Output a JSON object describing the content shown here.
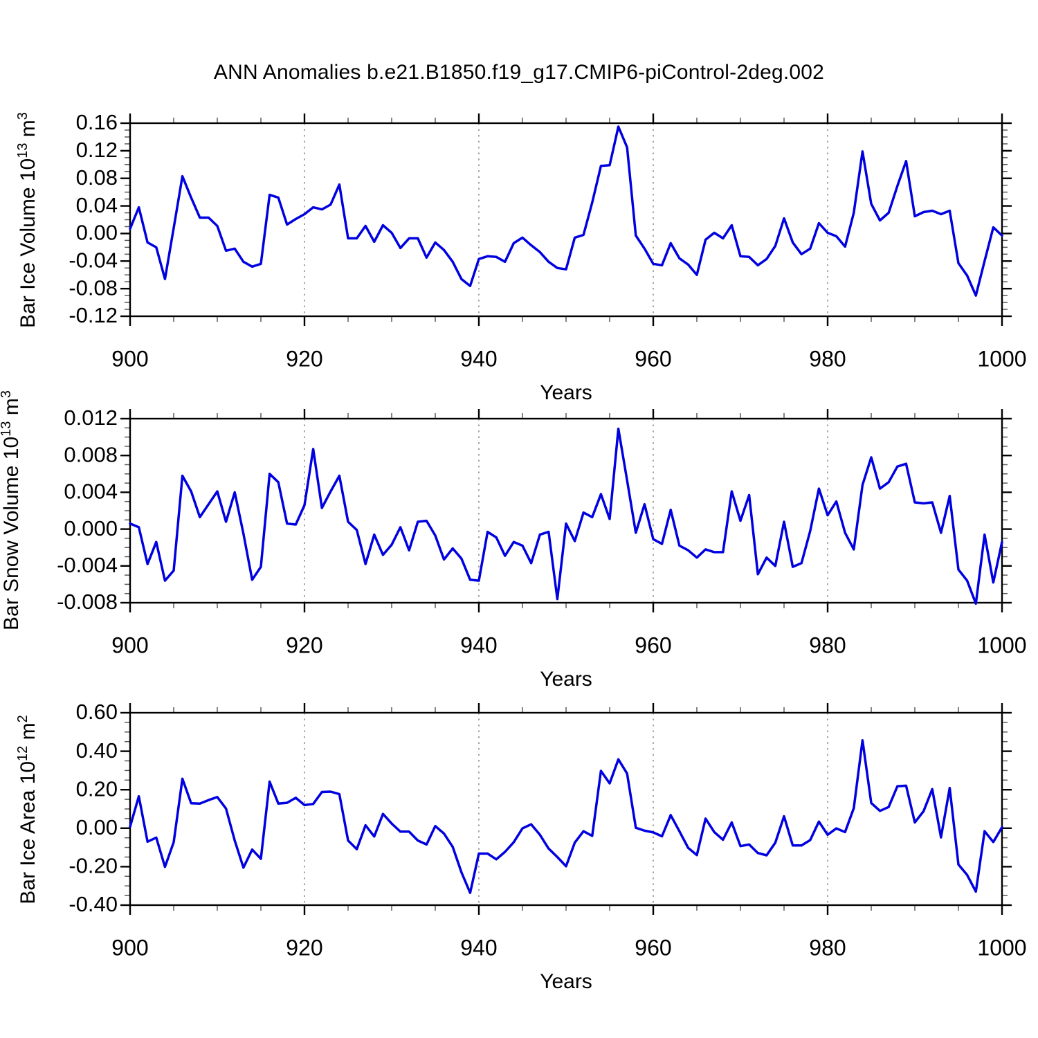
{
  "title": "ANN Anomalies b.e21.B1850.f19_g17.CMIP6-piControl-2deg.002",
  "x_axis_label": "Years",
  "xtick_labels": [
    "900",
    "920",
    "940",
    "960",
    "980",
    "1000"
  ],
  "xtick_values": [
    900,
    920,
    940,
    960,
    980,
    1000
  ],
  "x_minor_step": 5,
  "line_color": "#0000e0",
  "grid_color": "#808080",
  "panels": [
    {
      "ylabel": {
        "text": "Bar Ice Volume 10",
        "exp": "13",
        "unit": " m",
        "unit_exp": "3"
      },
      "ytick_labels": [
        "0.16",
        "0.12",
        "0.08",
        "0.04",
        "0.00",
        "-0.04",
        "-0.08",
        "-0.12"
      ],
      "ytick_values": [
        0.16,
        0.12,
        0.08,
        0.04,
        0.0,
        -0.04,
        -0.08,
        -0.12
      ],
      "yminor_step": 0.01
    },
    {
      "ylabel": {
        "text": "Bar Snow Volume 10",
        "exp": "13",
        "unit": " m",
        "unit_exp": "3"
      },
      "ytick_labels": [
        "0.012",
        "0.008",
        "0.004",
        "0.000",
        "-0.004",
        "-0.008"
      ],
      "ytick_values": [
        0.012,
        0.008,
        0.004,
        0.0,
        -0.004,
        -0.008
      ],
      "yminor_step": 0.001
    },
    {
      "ylabel": {
        "text": "Bar Ice Area 10",
        "exp": "12",
        "unit": " m",
        "unit_exp": "2"
      },
      "ytick_labels": [
        "0.60",
        "0.40",
        "0.20",
        "0.00",
        "-0.20",
        "-0.40"
      ],
      "ytick_values": [
        0.6,
        0.4,
        0.2,
        0.0,
        -0.2,
        -0.4
      ],
      "yminor_step": 0.05
    }
  ],
  "chart_data": {
    "type": "line",
    "title": "ANN Anomalies b.e21.B1850.f19_g17.CMIP6-piControl-2deg.002",
    "xlabel": "Years",
    "xlim": [
      900,
      1000
    ],
    "grid_x": [
      920,
      940,
      960,
      980
    ],
    "legend": "none",
    "x": [
      900,
      901,
      902,
      903,
      904,
      905,
      906,
      907,
      908,
      909,
      910,
      911,
      912,
      913,
      914,
      915,
      916,
      917,
      918,
      919,
      920,
      921,
      922,
      923,
      924,
      925,
      926,
      927,
      928,
      929,
      930,
      931,
      932,
      933,
      934,
      935,
      936,
      937,
      938,
      939,
      940,
      941,
      942,
      943,
      944,
      945,
      946,
      947,
      948,
      949,
      950,
      951,
      952,
      953,
      954,
      955,
      956,
      957,
      958,
      959,
      960,
      961,
      962,
      963,
      964,
      965,
      966,
      967,
      968,
      969,
      970,
      971,
      972,
      973,
      974,
      975,
      976,
      977,
      978,
      979,
      980,
      981,
      982,
      983,
      984,
      985,
      986,
      987,
      988,
      989,
      990,
      991,
      992,
      993,
      994,
      995,
      996,
      997,
      998,
      999,
      1000
    ],
    "series": [
      {
        "name": "Bar Ice Volume 10^13 m^3",
        "ylim": [
          -0.12,
          0.16
        ],
        "ytick_step": 0.04,
        "values": [
          0.007,
          0.038,
          -0.013,
          -0.02,
          -0.066,
          0.008,
          0.083,
          0.052,
          0.023,
          0.023,
          0.011,
          -0.025,
          -0.022,
          -0.041,
          -0.048,
          -0.044,
          0.056,
          0.052,
          0.013,
          0.021,
          0.028,
          0.038,
          0.035,
          0.042,
          0.071,
          -0.007,
          -0.007,
          0.011,
          -0.012,
          0.012,
          0.001,
          -0.021,
          -0.007,
          -0.007,
          -0.035,
          -0.013,
          -0.024,
          -0.041,
          -0.066,
          -0.076,
          -0.037,
          -0.033,
          -0.034,
          -0.041,
          -0.014,
          -0.006,
          -0.017,
          -0.027,
          -0.041,
          -0.05,
          -0.052,
          -0.006,
          -0.002,
          0.045,
          0.098,
          0.099,
          0.155,
          0.125,
          -0.003,
          -0.022,
          -0.044,
          -0.046,
          -0.014,
          -0.036,
          -0.045,
          -0.06,
          -0.009,
          0.001,
          -0.007,
          0.012,
          -0.033,
          -0.034,
          -0.046,
          -0.037,
          -0.018,
          0.022,
          -0.013,
          -0.03,
          -0.022,
          0.015,
          0.001,
          -0.004,
          -0.019,
          0.03,
          0.119,
          0.043,
          0.019,
          0.03,
          0.069,
          0.105,
          0.025,
          0.031,
          0.033,
          0.028,
          0.033,
          -0.043,
          -0.061,
          -0.09,
          -0.04,
          0.009,
          -0.003
        ]
      },
      {
        "name": "Bar Snow Volume 10^13 m^3",
        "ylim": [
          -0.008,
          0.012
        ],
        "ytick_step": 0.004,
        "values": [
          0.0006,
          0.0002,
          -0.0038,
          -0.0014,
          -0.0056,
          -0.0045,
          0.0058,
          0.0041,
          0.0013,
          0.0027,
          0.0041,
          0.0008,
          0.004,
          -0.0005,
          -0.0055,
          -0.0041,
          0.006,
          0.0051,
          0.0006,
          0.0005,
          0.0026,
          0.0087,
          0.0023,
          0.0041,
          0.0058,
          0.0008,
          -0.0001,
          -0.0038,
          -0.0006,
          -0.0028,
          -0.0017,
          0.0002,
          -0.0023,
          0.0008,
          0.0009,
          -0.0007,
          -0.0033,
          -0.0021,
          -0.0032,
          -0.0055,
          -0.0056,
          -0.0003,
          -0.0009,
          -0.0029,
          -0.0014,
          -0.0018,
          -0.0037,
          -0.0006,
          -0.0003,
          -0.0076,
          0.0006,
          -0.0013,
          0.0018,
          0.0013,
          0.0038,
          0.0011,
          0.0109,
          0.0053,
          -0.0004,
          0.0027,
          -0.0011,
          -0.0016,
          0.0021,
          -0.0018,
          -0.0023,
          -0.0031,
          -0.0022,
          -0.0025,
          -0.0025,
          0.0041,
          0.0009,
          0.0037,
          -0.0049,
          -0.0031,
          -0.004,
          0.0008,
          -0.0041,
          -0.0037,
          -0.0002,
          0.0044,
          0.0015,
          0.003,
          -0.0004,
          -0.0022,
          0.0048,
          0.0078,
          0.0044,
          0.0051,
          0.0068,
          0.0071,
          0.0029,
          0.0028,
          0.0029,
          -0.0004,
          0.0036,
          -0.0044,
          -0.0056,
          -0.0081,
          -0.0006,
          -0.0058,
          -0.0014
        ]
      },
      {
        "name": "Bar Ice Area 10^12 m^2",
        "ylim": [
          -0.4,
          0.6
        ],
        "ytick_step": 0.2,
        "values": [
          0.008,
          0.166,
          -0.07,
          -0.049,
          -0.201,
          -0.073,
          0.257,
          0.13,
          0.128,
          0.146,
          0.162,
          0.102,
          -0.064,
          -0.205,
          -0.111,
          -0.159,
          0.242,
          0.128,
          0.132,
          0.158,
          0.12,
          0.126,
          0.188,
          0.19,
          0.177,
          -0.064,
          -0.109,
          0.015,
          -0.043,
          0.074,
          0.024,
          -0.018,
          -0.018,
          -0.064,
          -0.085,
          0.011,
          -0.028,
          -0.097,
          -0.229,
          -0.336,
          -0.132,
          -0.132,
          -0.162,
          -0.123,
          -0.073,
          -0.001,
          0.02,
          -0.034,
          -0.106,
          -0.15,
          -0.198,
          -0.075,
          -0.016,
          -0.04,
          0.298,
          0.233,
          0.358,
          0.284,
          0.002,
          -0.013,
          -0.022,
          -0.042,
          0.068,
          -0.016,
          -0.102,
          -0.14,
          0.05,
          -0.02,
          -0.06,
          0.03,
          -0.093,
          -0.085,
          -0.129,
          -0.141,
          -0.075,
          0.062,
          -0.09,
          -0.09,
          -0.062,
          0.034,
          -0.034,
          -0.001,
          -0.02,
          0.104,
          0.457,
          0.131,
          0.09,
          0.11,
          0.218,
          0.221,
          0.03,
          0.088,
          0.203,
          -0.048,
          0.209,
          -0.189,
          -0.243,
          -0.33,
          -0.016,
          -0.072,
          0.005
        ]
      }
    ]
  }
}
